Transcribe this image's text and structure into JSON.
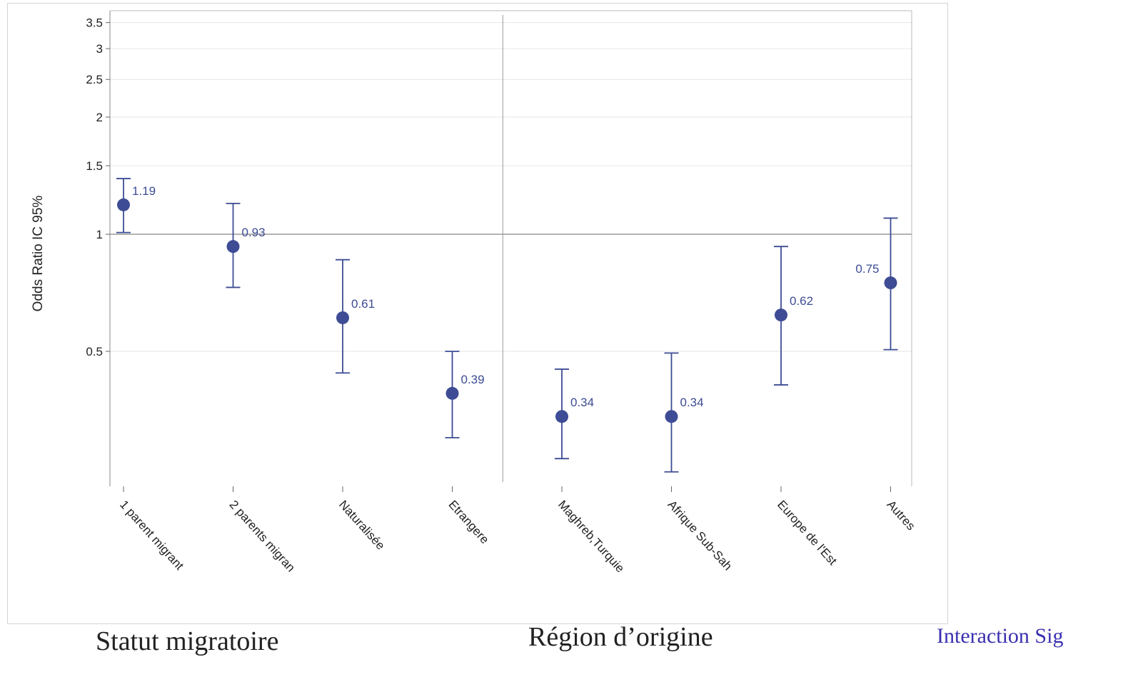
{
  "chart_data": {
    "type": "scatter",
    "subtype": "odds-ratio-errorbar",
    "ylabel": "Odds Ratio IC 95%",
    "yscale": "log",
    "ylim": [
      0.25,
      3.6
    ],
    "yticks": [
      0.5,
      1,
      1.5,
      2,
      2.5,
      3,
      3.5
    ],
    "ytick_labels": [
      "0.5",
      "1",
      "1.5",
      "2",
      "2.5",
      "3",
      "3.5"
    ],
    "reference_line": 1,
    "grid": true,
    "categories": [
      "1 parent migrant",
      "2 parents migran",
      "Naturalisée",
      "Etrangere",
      "Maghreb,Turquie",
      "Afrique Sub-Sah",
      "Europe de l'Est",
      "Autres"
    ],
    "values": [
      1.19,
      0.93,
      0.61,
      0.39,
      0.34,
      0.34,
      0.62,
      0.75
    ],
    "value_labels": [
      "1.19",
      "0.93",
      "0.61",
      "0.39",
      "0.34",
      "0.34",
      "0.62",
      "0.75"
    ],
    "ci_lower": [
      1.01,
      0.73,
      0.44,
      0.3,
      0.265,
      0.245,
      0.41,
      0.505
    ],
    "ci_upper": [
      1.39,
      1.2,
      0.86,
      0.5,
      0.45,
      0.495,
      0.93,
      1.1
    ],
    "groups": [
      {
        "label": "Statut migratoire",
        "categories": [
          0,
          1,
          2,
          3
        ]
      },
      {
        "label": "Région d’origine",
        "categories": [
          4,
          5,
          6,
          7
        ]
      }
    ]
  },
  "labels": {
    "group1": "Statut migratoire",
    "group2": "Région d’origine",
    "note": "Interaction Sig"
  },
  "colors": {
    "marker": "#3d4c94",
    "reference": "#9a9a9a",
    "grid": "#e6e6e6",
    "note": "#3a2fb0"
  }
}
